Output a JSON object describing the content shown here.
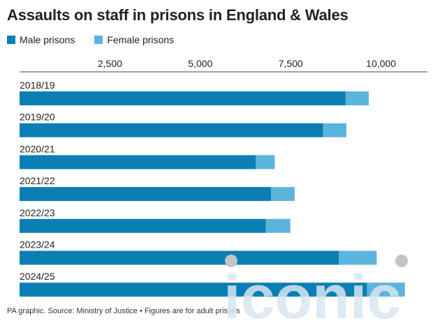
{
  "title": "Assaults on staff in prisons in England & Wales",
  "footer": "PA graphic. Source: Ministry of Justice • Figures are for adult prisons",
  "watermark": "iconic",
  "colors": {
    "male": "#0a7fb4",
    "female": "#5bb4dc",
    "axis": "#444444",
    "watermark": "#d7e5f1",
    "watermark_dot": "#c4c4c4"
  },
  "chart_data": {
    "type": "bar",
    "orientation": "horizontal",
    "stacked": true,
    "title": "Assaults on staff in prisons in England & Wales",
    "categories": [
      "2018/19",
      "2019/20",
      "2020/21",
      "2021/22",
      "2022/23",
      "2023/24",
      "2024/25"
    ],
    "series": [
      {
        "name": "Male prisons",
        "values": [
          9020,
          8400,
          6530,
          6960,
          6810,
          8830,
          9610
        ]
      },
      {
        "name": "Female prisons",
        "values": [
          640,
          640,
          530,
          650,
          680,
          1050,
          1050
        ]
      }
    ],
    "ticks": [
      2500,
      5000,
      7500,
      10000
    ],
    "tick_labels": [
      "2,500",
      "5,000",
      "7,500",
      "10,000"
    ],
    "xlim": [
      0,
      11000
    ],
    "legend_position": "top-left",
    "grid": false
  }
}
